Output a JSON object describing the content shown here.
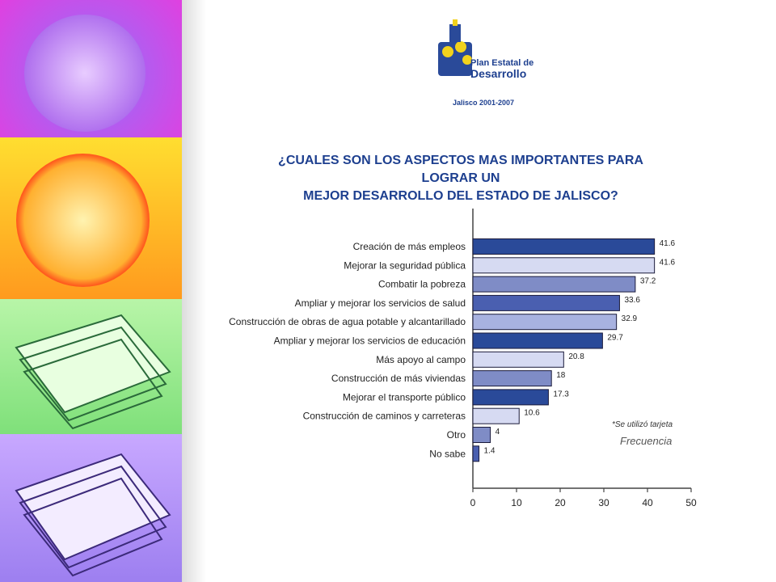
{
  "logo": {
    "line1": "Plan Estatal de",
    "line2": "Desarrollo",
    "subtitle": "Jalisco 2001-2007"
  },
  "chart_data": {
    "type": "bar",
    "orientation": "horizontal",
    "title": "¿CUALES SON LOS ASPECTOS MAS IMPORTANTES PARA LOGRAR UN MEJOR DESARROLLO DEL ESTADO DE JALISCO?",
    "title_lines": [
      "¿CUALES SON LOS ASPECTOS MAS IMPORTANTES PARA LOGRAR UN",
      "MEJOR DESARROLLO DEL ESTADO DE JALISCO?"
    ],
    "categories": [
      "Creación de más empleos",
      "Mejorar la seguridad pública",
      "Combatir la pobreza",
      "Ampliar y mejorar los servicios de salud",
      "Construcción de obras de agua potable y alcantarillado",
      "Ampliar y mejorar los servicios de educación",
      "Más apoyo al campo",
      "Construcción de más viviendas",
      "Mejorar el transporte público",
      "Construcción de caminos y carreteras",
      "Otro",
      "No sabe"
    ],
    "values": [
      41.6,
      41.6,
      37.2,
      33.6,
      32.9,
      29.7,
      20.8,
      18,
      17.3,
      10.6,
      4,
      1.4
    ],
    "value_labels": [
      "41.6",
      "41.6",
      "37.2",
      "33.6",
      "32.9",
      "29.7",
      "20.8",
      "18",
      "17.3",
      "10.6",
      "4",
      "1.4"
    ],
    "bar_colors": [
      "#2a4a99",
      "#d6daf2",
      "#7f8cc6",
      "#4a5fb0",
      "#a8b2e0",
      "#2a4a99",
      "#d6daf2",
      "#7f8cc6",
      "#2a4a99",
      "#d6daf2",
      "#7f8cc6",
      "#4a5fb0"
    ],
    "xlim": [
      0,
      50
    ],
    "xticks": [
      "0",
      "10",
      "20",
      "30",
      "40",
      "50"
    ],
    "annotations": [
      "*Se utilizó tarjeta",
      "Frecuencia"
    ]
  }
}
